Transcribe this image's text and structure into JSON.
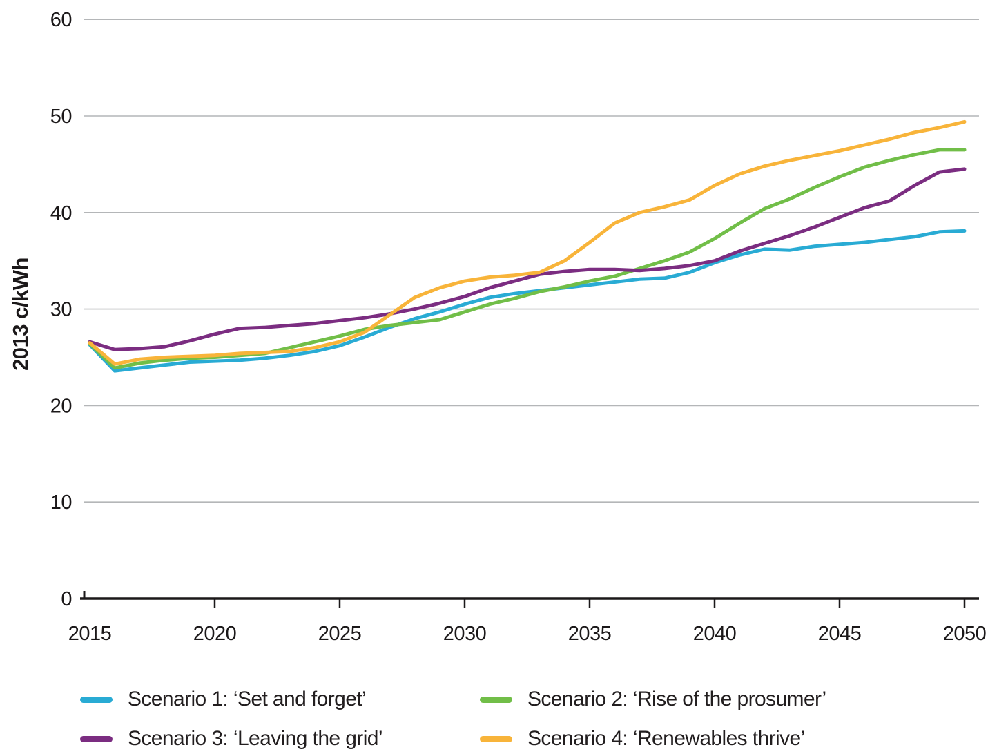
{
  "chart_data": {
    "type": "line",
    "title": "",
    "xlabel": "",
    "ylabel": "2013 c/kWh",
    "ylim": [
      0,
      60
    ],
    "ytick_interval": 10,
    "xticks": [
      2015,
      2020,
      2025,
      2030,
      2035,
      2040,
      2045,
      2050
    ],
    "grid": "horizontal",
    "legend_position": "bottom",
    "colors": {
      "grid": "#b4b6b8",
      "axis": "#1b1819",
      "text": "#1b1819"
    },
    "x": [
      2015,
      2016,
      2017,
      2018,
      2019,
      2020,
      2021,
      2022,
      2023,
      2024,
      2025,
      2026,
      2027,
      2028,
      2029,
      2030,
      2031,
      2032,
      2033,
      2034,
      2035,
      2036,
      2037,
      2038,
      2039,
      2040,
      2041,
      2042,
      2043,
      2044,
      2045,
      2046,
      2047,
      2048,
      2049,
      2050
    ],
    "series": [
      {
        "name": "Scenario 1: ‘Set and forget’",
        "color": "#29abd4",
        "values": [
          26.3,
          23.6,
          23.9,
          24.2,
          24.5,
          24.6,
          24.7,
          24.9,
          25.2,
          25.6,
          26.2,
          27.1,
          28.1,
          29.0,
          29.7,
          30.5,
          31.2,
          31.6,
          31.9,
          32.2,
          32.5,
          32.8,
          33.1,
          33.2,
          33.8,
          34.8,
          35.6,
          36.2,
          36.1,
          36.5,
          36.7,
          36.9,
          37.2,
          37.5,
          38.0,
          38.1
        ]
      },
      {
        "name": "Scenario 2: ‘Rise of the prosumer’",
        "color": "#71be48",
        "values": [
          26.4,
          23.9,
          24.4,
          24.7,
          24.9,
          25.0,
          25.2,
          25.4,
          26.0,
          26.6,
          27.2,
          27.9,
          28.3,
          28.6,
          28.9,
          29.7,
          30.5,
          31.1,
          31.8,
          32.3,
          32.9,
          33.4,
          34.2,
          35.0,
          35.9,
          37.3,
          38.9,
          40.4,
          41.4,
          42.6,
          43.7,
          44.7,
          45.4,
          46.0,
          46.5,
          46.5
        ]
      },
      {
        "name": "Scenario 3: ‘Leaving the grid’",
        "color": "#7b2d81",
        "values": [
          26.6,
          25.8,
          25.9,
          26.1,
          26.7,
          27.4,
          28.0,
          28.1,
          28.3,
          28.5,
          28.8,
          29.1,
          29.5,
          30.0,
          30.6,
          31.3,
          32.2,
          32.9,
          33.6,
          33.9,
          34.1,
          34.1,
          34.0,
          34.2,
          34.5,
          35.0,
          36.0,
          36.8,
          37.6,
          38.5,
          39.5,
          40.5,
          41.2,
          42.8,
          44.2,
          44.5
        ]
      },
      {
        "name": "Scenario 4: ‘Renewables thrive’",
        "color": "#f8b43a",
        "values": [
          26.5,
          24.3,
          24.8,
          25.0,
          25.1,
          25.2,
          25.4,
          25.5,
          25.6,
          26.0,
          26.6,
          27.6,
          29.4,
          31.2,
          32.2,
          32.9,
          33.3,
          33.5,
          33.8,
          35.0,
          36.9,
          38.9,
          40.0,
          40.6,
          41.3,
          42.8,
          44.0,
          44.8,
          45.4,
          45.9,
          46.4,
          47.0,
          47.6,
          48.3,
          48.8,
          49.4
        ]
      }
    ]
  }
}
